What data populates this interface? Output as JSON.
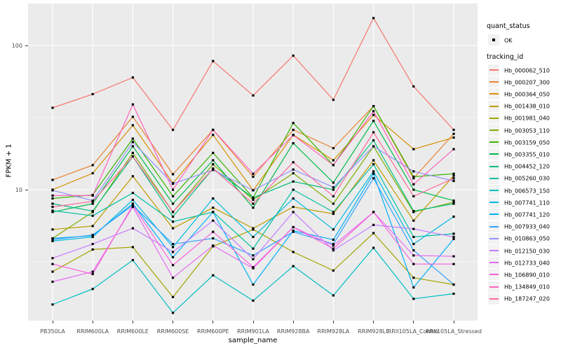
{
  "axes": {
    "y_label": "FPKM + 1",
    "x_label": "sample_name",
    "y_ticks": [
      {
        "label": "100",
        "value": 100
      },
      {
        "label": "10",
        "value": 10
      }
    ]
  },
  "legend": {
    "quant_status": {
      "title": "quant_status",
      "items": [
        {
          "label": "OK",
          "marker": "black-square-point"
        }
      ]
    },
    "tracking_id": {
      "title": "tracking_id"
    }
  },
  "colors": {
    "panel_background": "#EBEBEB",
    "gridline": "#FFFFFF",
    "axis_text": "#4D4D4D",
    "marker": "#000000",
    "legend_key_background": "#F2F2F2"
  },
  "chart_data": {
    "type": "line",
    "x_type": "categorical",
    "y_scale": "log10",
    "xlabel": "sample_name",
    "ylabel": "FPKM + 1",
    "y_axis_breaks": [
      100,
      10
    ],
    "y_minor_breaks": [
      31.62,
      3.162
    ],
    "ylim": [
      1.25,
      195
    ],
    "grid": true,
    "legend_position": "right",
    "point_shape": "filled-square",
    "point_color": "#000000",
    "categories": [
      "PB350LA",
      "RRIM600LA",
      "RRIM600LE",
      "RRIM600SE",
      "RRIM600PE",
      "RRIM901LA",
      "RRIM928BA",
      "RRIM928LA",
      "RRIM928LE",
      "RRII105LA_Control",
      "RRII105LA_Stressed"
    ],
    "series": [
      {
        "name": "Hb_000062_510",
        "color": "#F8766D",
        "values": [
          37,
          46,
          60,
          26,
          78,
          45,
          85,
          42,
          155,
          52,
          26
        ]
      },
      {
        "name": "Hb_000207_300",
        "color": "#EA8331",
        "values": [
          11.7,
          14.8,
          32,
          12.8,
          26,
          12.3,
          26,
          19.4,
          38,
          12,
          24.4
        ]
      },
      {
        "name": "Hb_000364_050",
        "color": "#D89000",
        "values": [
          10,
          13,
          28,
          11.1,
          24,
          9.9,
          24,
          16,
          33,
          19.1,
          23
        ]
      },
      {
        "name": "Hb_001438_010",
        "color": "#C09B00",
        "values": [
          5.3,
          5.6,
          12.4,
          5.4,
          7.5,
          5.4,
          7.6,
          6.8,
          16,
          6.1,
          12.5
        ]
      },
      {
        "name": "Hb_001981_040",
        "color": "#A3A500",
        "values": [
          2.7,
          3.85,
          4.0,
          1.8,
          4.05,
          5.3,
          3.7,
          2.75,
          5.0,
          2.45,
          2.2
        ]
      },
      {
        "name": "Hb_003053_110",
        "color": "#7CAE00",
        "values": [
          4.6,
          7.0,
          18,
          7.0,
          15,
          8.5,
          13,
          8.0,
          20,
          7.0,
          8.2
        ]
      },
      {
        "name": "Hb_003159_050",
        "color": "#39B600",
        "values": [
          8.7,
          9.2,
          22.6,
          9.0,
          18,
          8.8,
          29,
          14.8,
          38,
          12.3,
          12.9
        ]
      },
      {
        "name": "Hb_003355_010",
        "color": "#00BB4E",
        "values": [
          7.0,
          8.0,
          20,
          8.0,
          16,
          7.5,
          21,
          11.2,
          30,
          10,
          8.4
        ]
      },
      {
        "name": "Hb_004452_120",
        "color": "#00BF7D",
        "values": [
          8.0,
          7.1,
          17,
          6.5,
          14,
          8.8,
          11.4,
          10,
          22,
          7.1,
          8.0
        ]
      },
      {
        "name": "Hb_005260_030",
        "color": "#00C1A3",
        "values": [
          7.15,
          6.6,
          9.5,
          6.0,
          7.0,
          3.9,
          10,
          7.0,
          15,
          4.7,
          4.95
        ]
      },
      {
        "name": "Hb_006573_150",
        "color": "#00BFC4",
        "values": [
          1.6,
          2.05,
          3.25,
          1.4,
          2.55,
          1.7,
          2.95,
          1.85,
          3.95,
          1.75,
          1.9
        ]
      },
      {
        "name": "Hb_007741_110",
        "color": "#00BAE0",
        "values": [
          4.4,
          4.7,
          8.5,
          4.0,
          8.7,
          4.7,
          8.7,
          5.3,
          13.4,
          4.2,
          6.5
        ]
      },
      {
        "name": "Hb_007741_120",
        "color": "#00B0F6",
        "values": [
          4.6,
          4.8,
          8.0,
          3.4,
          7.0,
          2.2,
          5.2,
          4.5,
          12.9,
          2.1,
          4.55
        ]
      },
      {
        "name": "Hb_007933_040",
        "color": "#35A2FF",
        "values": [
          4.5,
          4.85,
          7.8,
          4.2,
          4.6,
          3.5,
          5.1,
          4.2,
          12,
          3.8,
          2.2
        ]
      },
      {
        "name": "Hb_010863_050",
        "color": "#9590FF",
        "values": [
          9.9,
          8.4,
          21.4,
          11,
          13.7,
          9.9,
          13.8,
          10.4,
          20,
          13.4,
          11.5
        ]
      },
      {
        "name": "Hb_012150_030",
        "color": "#C77CFF",
        "values": [
          3.35,
          4.2,
          5.4,
          3.7,
          6.1,
          3.3,
          7.0,
          3.8,
          5.7,
          5.35,
          4.7
        ]
      },
      {
        "name": "Hb_012733_040",
        "color": "#E76BF3",
        "values": [
          2.3,
          2.7,
          7.6,
          2.45,
          4.1,
          2.85,
          5.5,
          4.1,
          7.0,
          3.5,
          3.45
        ]
      },
      {
        "name": "Hb_106890_010",
        "color": "#FA62DB",
        "values": [
          3.05,
          2.6,
          7.8,
          3.0,
          5.1,
          2.9,
          5.5,
          3.9,
          7.0,
          3.05,
          3.05
        ]
      },
      {
        "name": "Hb_134849_010",
        "color": "#FF62BC",
        "values": [
          9.1,
          9.1,
          39,
          10,
          26,
          12.9,
          23.9,
          14.8,
          35,
          10.9,
          19.1
        ]
      },
      {
        "name": "Hb_187247_020",
        "color": "#FF6A98",
        "values": [
          7.6,
          8.3,
          17,
          7.0,
          14,
          8.0,
          15.5,
          9.0,
          25,
          9.0,
          12
        ]
      }
    ]
  }
}
